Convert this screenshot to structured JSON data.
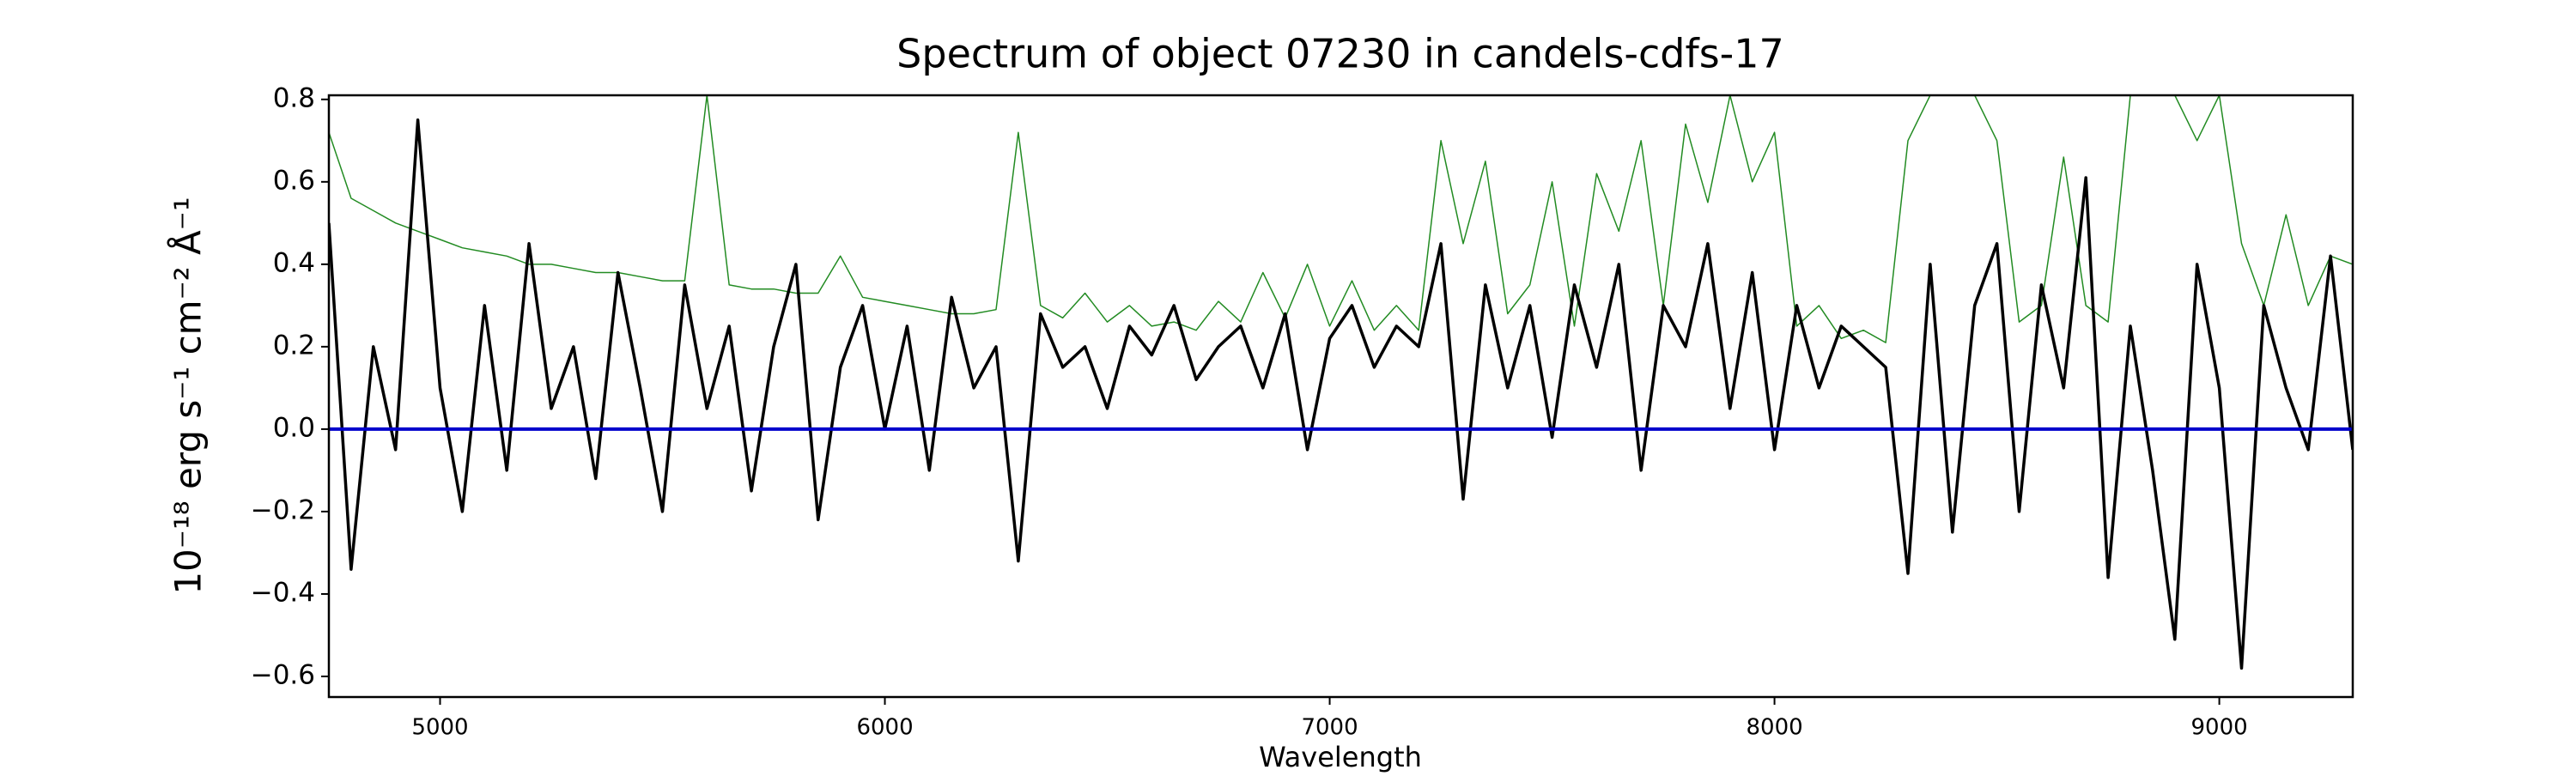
{
  "chart_data": {
    "type": "line",
    "title": "Spectrum of object 07230 in candels-cdfs-17",
    "xlabel": "Wavelength",
    "ylabel": "10⁻¹⁸ erg s⁻¹ cm⁻² Å⁻¹",
    "x": [
      4750,
      4800,
      4850,
      4900,
      4950,
      5000,
      5050,
      5100,
      5150,
      5200,
      5250,
      5300,
      5350,
      5400,
      5450,
      5500,
      5550,
      5600,
      5650,
      5700,
      5750,
      5800,
      5850,
      5900,
      5950,
      6000,
      6050,
      6100,
      6150,
      6200,
      6250,
      6300,
      6350,
      6400,
      6450,
      6500,
      6550,
      6600,
      6650,
      6700,
      6750,
      6800,
      6850,
      6900,
      6950,
      7000,
      7050,
      7100,
      7150,
      7200,
      7250,
      7300,
      7350,
      7400,
      7450,
      7500,
      7550,
      7600,
      7650,
      7700,
      7750,
      7800,
      7850,
      7900,
      7950,
      8000,
      8050,
      8100,
      8150,
      8200,
      8250,
      8300,
      8350,
      8400,
      8450,
      8500,
      8550,
      8600,
      8650,
      8700,
      8750,
      8800,
      8850,
      8900,
      8950,
      9000,
      9050,
      9100,
      9150,
      9200,
      9250,
      9300
    ],
    "series": [
      {
        "color": "#228b22",
        "values": [
          0.72,
          0.56,
          0.53,
          0.5,
          0.48,
          0.46,
          0.44,
          0.43,
          0.42,
          0.4,
          0.4,
          0.39,
          0.38,
          0.38,
          0.37,
          0.36,
          0.36,
          0.81,
          0.35,
          0.34,
          0.34,
          0.33,
          0.33,
          0.42,
          0.32,
          0.31,
          0.3,
          0.29,
          0.28,
          0.28,
          0.29,
          0.72,
          0.3,
          0.27,
          0.33,
          0.26,
          0.3,
          0.25,
          0.26,
          0.24,
          0.31,
          0.26,
          0.38,
          0.27,
          0.4,
          0.25,
          0.36,
          0.24,
          0.3,
          0.24,
          0.7,
          0.45,
          0.65,
          0.28,
          0.35,
          0.6,
          0.25,
          0.62,
          0.48,
          0.7,
          0.3,
          0.74,
          0.55,
          0.81,
          0.6,
          0.72,
          0.25,
          0.3,
          0.22,
          0.24,
          0.21,
          0.7,
          0.81,
          0.81,
          0.81,
          0.7,
          0.26,
          0.3,
          0.66,
          0.3,
          0.26,
          0.81,
          0.81,
          0.81,
          0.7,
          0.81,
          0.45,
          0.3,
          0.52,
          0.3,
          0.42,
          0.4
        ]
      },
      {
        "color": "#000000",
        "values": [
          0.5,
          -0.34,
          0.2,
          -0.05,
          0.75,
          0.1,
          -0.2,
          0.3,
          -0.1,
          0.45,
          0.05,
          0.2,
          -0.12,
          0.38,
          0.1,
          -0.2,
          0.35,
          0.05,
          0.25,
          -0.15,
          0.2,
          0.4,
          -0.22,
          0.15,
          0.3,
          0.0,
          0.25,
          -0.1,
          0.32,
          0.1,
          0.2,
          -0.32,
          0.28,
          0.15,
          0.2,
          0.05,
          0.25,
          0.18,
          0.3,
          0.12,
          0.2,
          0.25,
          0.1,
          0.28,
          -0.05,
          0.22,
          0.3,
          0.15,
          0.25,
          0.2,
          0.45,
          -0.17,
          0.35,
          0.1,
          0.3,
          -0.02,
          0.35,
          0.15,
          0.4,
          -0.1,
          0.3,
          0.2,
          0.45,
          0.05,
          0.38,
          -0.05,
          0.3,
          0.1,
          0.25,
          0.2,
          0.15,
          -0.35,
          0.4,
          -0.25,
          0.3,
          0.45,
          -0.2,
          0.35,
          0.1,
          0.61,
          -0.36,
          0.25,
          -0.1,
          -0.51,
          0.4,
          0.1,
          -0.58,
          0.3,
          0.1,
          -0.05,
          0.42,
          -0.05
        ]
      }
    ],
    "hlines": [
      {
        "y": 0,
        "color": "#0000cc"
      }
    ],
    "xlim": [
      4750,
      9300
    ],
    "xticks": [
      5000,
      6000,
      7000,
      8000,
      9000
    ],
    "ylim": [
      -0.65,
      0.81
    ],
    "yticks": [
      {
        "value": -0.6,
        "label": "−0.6"
      },
      {
        "value": -0.4,
        "label": "−0.4"
      },
      {
        "value": -0.2,
        "label": "−0.2"
      },
      {
        "value": 0,
        "label": "0.0"
      },
      0.2,
      0.4,
      0.6,
      0.8
    ],
    "grid": false
  }
}
